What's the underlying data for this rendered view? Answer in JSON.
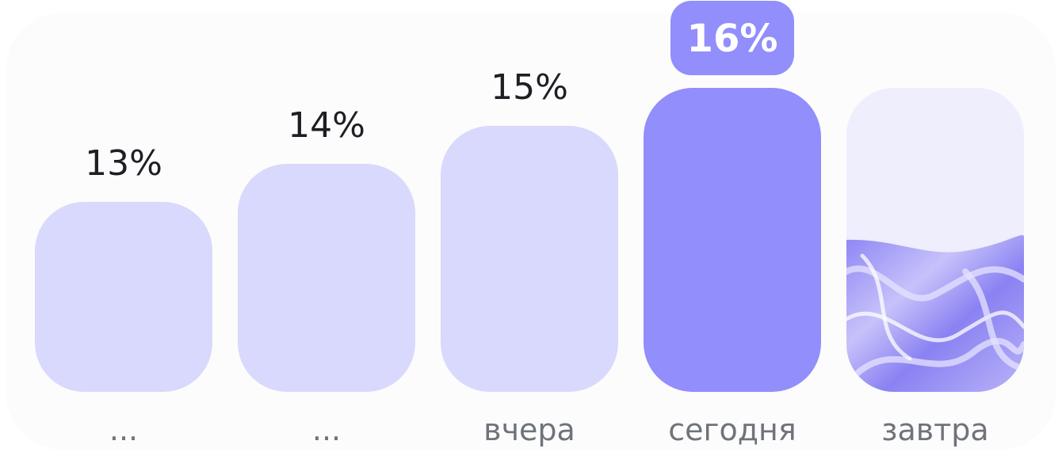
{
  "chart_data": {
    "type": "bar",
    "categories": [
      "...",
      "...",
      "вчера",
      "сегодня",
      "завтра"
    ],
    "series": [
      {
        "values": [
          13,
          14,
          15,
          16,
          null
        ],
        "labels": [
          "13%",
          "14%",
          "15%",
          "16%",
          ""
        ]
      }
    ],
    "highlight_index": 3,
    "forecast_index": 4,
    "forecast_fill_fraction": 0.5,
    "title": "",
    "xlabel": "",
    "ylabel": "",
    "grid": false,
    "colors": {
      "bar": "#d9d9fd",
      "highlight": "#928efc",
      "forecast_top": "#eeeefc",
      "forecast_wave": "#9088f5",
      "value_text": "#1e1f24",
      "category_text": "#6f737a",
      "badge_text": "#ffffff",
      "panel": "#fcfcfd"
    }
  }
}
